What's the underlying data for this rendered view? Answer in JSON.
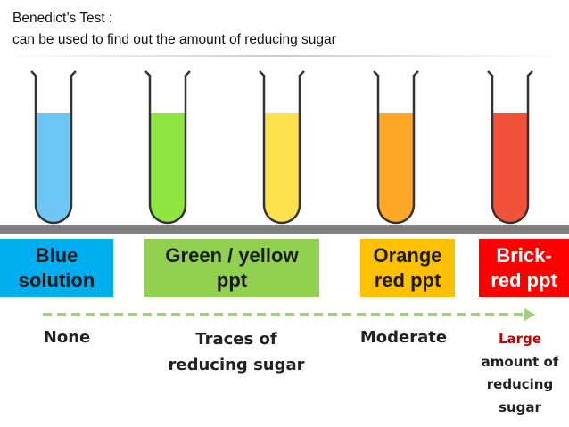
{
  "header": {
    "title": "Benedict’s Test :",
    "subtitle": "can be used to find out the amount of reducing sugar"
  },
  "results": [
    {
      "label": [
        "Blue",
        "solution"
      ],
      "amount": [
        "None"
      ]
    },
    {
      "label": [
        "Green / yellow",
        "ppt"
      ],
      "amount": [
        "Traces of",
        "reducing sugar"
      ]
    },
    {
      "label": [
        "Orange",
        "red ppt"
      ],
      "amount": [
        "Moderate"
      ]
    },
    {
      "label": [
        "Brick-",
        "red ppt"
      ],
      "amount": [
        "Large",
        "amount of",
        "reducing",
        "sugar"
      ]
    }
  ]
}
